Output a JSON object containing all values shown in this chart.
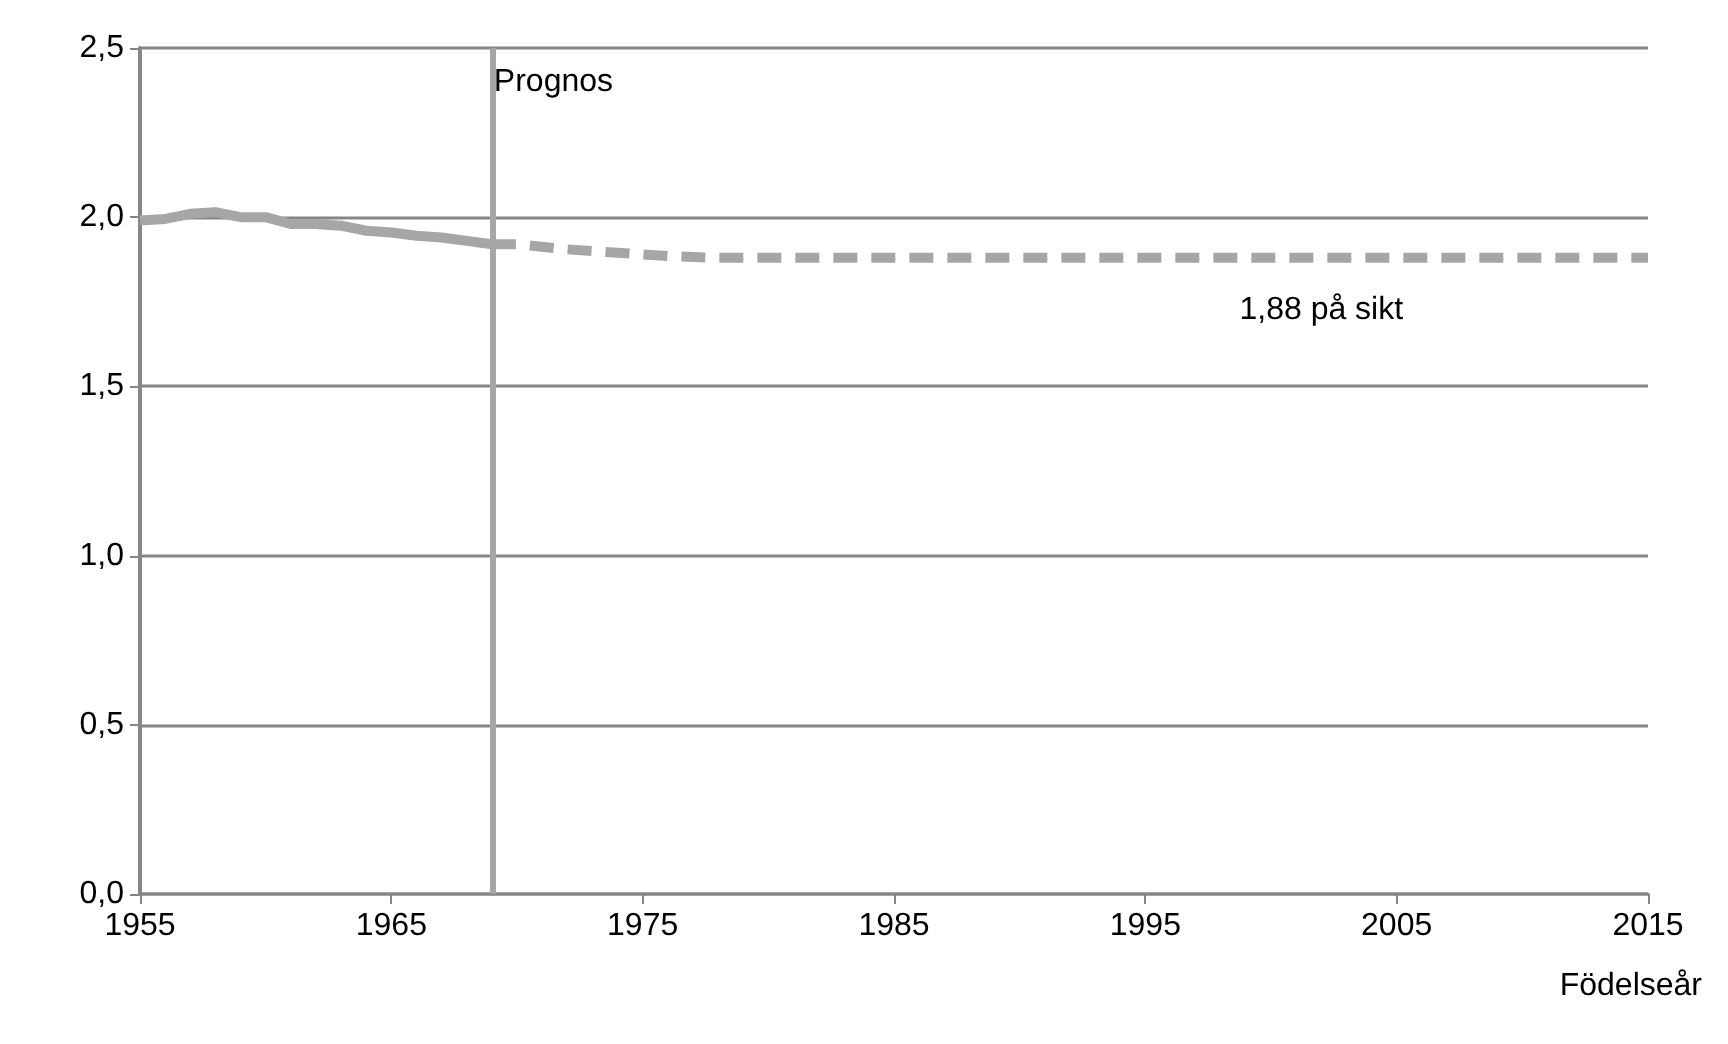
{
  "chart_data": {
    "type": "line",
    "xlabel": "Födelseår",
    "xlim": [
      1955,
      2015
    ],
    "xticks": [
      1955,
      1965,
      1975,
      1985,
      1995,
      2005,
      2015
    ],
    "ylim": [
      0,
      2.5
    ],
    "yticks": [
      {
        "value": 0,
        "label": "0,0"
      },
      {
        "value": 0.5,
        "label": "0,5"
      },
      {
        "value": 1,
        "label": "1,0"
      },
      {
        "value": 1.5,
        "label": "1,5"
      },
      {
        "value": 2,
        "label": "2,0"
      },
      {
        "value": 2.5,
        "label": "2,5"
      }
    ],
    "grid": "y",
    "marker": "none",
    "series": [
      {
        "color": "#a6a6a6",
        "line_style": "solid",
        "x": [
          1955,
          1956,
          1957,
          1958,
          1959,
          1960,
          1961,
          1962,
          1963,
          1964,
          1965,
          1966,
          1967,
          1968,
          1969
        ],
        "values": [
          1.99,
          1.995,
          2.01,
          2.015,
          2.0,
          2.0,
          1.98,
          1.98,
          1.975,
          1.96,
          1.955,
          1.945,
          1.94,
          1.93,
          1.92
        ]
      },
      {
        "color": "#a6a6a6",
        "line_style": "dashed",
        "x": [
          1969,
          1970,
          1972,
          1974,
          1976,
          1978,
          1980,
          1985,
          1990,
          1995,
          2000,
          2005,
          2010,
          2015
        ],
        "values": [
          1.92,
          1.92,
          1.905,
          1.895,
          1.885,
          1.88,
          1.88,
          1.88,
          1.88,
          1.88,
          1.88,
          1.88,
          1.88,
          1.88
        ]
      }
    ],
    "ref_lines": [
      {
        "axis": "x",
        "value": 1969,
        "label": "Prognos",
        "color": "#a6a6a6"
      }
    ],
    "annotations": [
      {
        "text": "1,88 på sikt",
        "x": 2002,
        "y": 1.88
      }
    ]
  }
}
